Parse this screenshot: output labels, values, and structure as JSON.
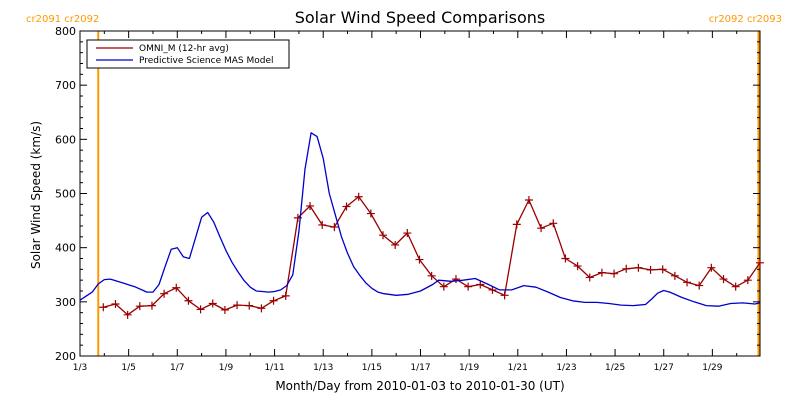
{
  "chart_data": {
    "type": "line",
    "title": "Solar Wind Speed Comparisons",
    "xlabel": "Month/Day from 2010-01-03 to 2010-01-30 (UT)",
    "ylabel": "Solar Wind Speed (km/s)",
    "xlim": [
      "2010-01-03",
      "2010-01-30T23:00"
    ],
    "ylim": [
      200,
      800
    ],
    "x_ticks": [
      "1/3",
      "1/5",
      "1/7",
      "1/9",
      "1/11",
      "1/13",
      "1/15",
      "1/17",
      "1/19",
      "1/21",
      "1/23",
      "1/25",
      "1/27",
      "1/29"
    ],
    "y_ticks": [
      200,
      300,
      400,
      500,
      600,
      700,
      800
    ],
    "grid": false,
    "legend_placement": "top-left",
    "rotation_labels": {
      "left": "cr2091 cr2092",
      "right": "cr2092 cr2093",
      "color": "#ff9900"
    },
    "rotation_markers": [
      "2010-01-03T18:00",
      "2010-01-30T21:30"
    ],
    "series": [
      {
        "name": "OMNI_M (12-hr avg)",
        "color": "#990000",
        "marker": "+",
        "points": [
          [
            "2010-01-03T23:00",
            290
          ],
          [
            "2010-01-04T11:00",
            296
          ],
          [
            "2010-01-04T23:00",
            276
          ],
          [
            "2010-01-05T11:00",
            292
          ],
          [
            "2010-01-05T23:00",
            293
          ],
          [
            "2010-01-06T11:00",
            315
          ],
          [
            "2010-01-06T23:00",
            326
          ],
          [
            "2010-01-07T11:00",
            302
          ],
          [
            "2010-01-07T23:00",
            286
          ],
          [
            "2010-01-08T11:00",
            297
          ],
          [
            "2010-01-08T23:00",
            285
          ],
          [
            "2010-01-09T11:00",
            294
          ],
          [
            "2010-01-09T23:00",
            293
          ],
          [
            "2010-01-10T11:00",
            288
          ],
          [
            "2010-01-10T23:00",
            302
          ],
          [
            "2010-01-11T11:00",
            311
          ],
          [
            "2010-01-11T23:00",
            455
          ],
          [
            "2010-01-12T11:00",
            477
          ],
          [
            "2010-01-12T23:00",
            442
          ],
          [
            "2010-01-13T11:00",
            438
          ],
          [
            "2010-01-13T23:00",
            476
          ],
          [
            "2010-01-14T11:00",
            494
          ],
          [
            "2010-01-14T23:00",
            463
          ],
          [
            "2010-01-15T11:00",
            423
          ],
          [
            "2010-01-15T23:00",
            405
          ],
          [
            "2010-01-16T11:00",
            427
          ],
          [
            "2010-01-16T23:00",
            378
          ],
          [
            "2010-01-17T11:00",
            348
          ],
          [
            "2010-01-17T23:00",
            328
          ],
          [
            "2010-01-18T11:00",
            342
          ],
          [
            "2010-01-18T23:00",
            328
          ],
          [
            "2010-01-19T11:00",
            332
          ],
          [
            "2010-01-19T23:00",
            322
          ],
          [
            "2010-01-20T11:00",
            312
          ],
          [
            "2010-01-20T23:00",
            443
          ],
          [
            "2010-01-21T11:00",
            488
          ],
          [
            "2010-01-21T23:00",
            436
          ],
          [
            "2010-01-22T11:00",
            445
          ],
          [
            "2010-01-22T23:00",
            380
          ],
          [
            "2010-01-23T11:00",
            366
          ],
          [
            "2010-01-23T23:00",
            345
          ],
          [
            "2010-01-24T11:00",
            354
          ],
          [
            "2010-01-24T23:00",
            352
          ],
          [
            "2010-01-25T11:00",
            361
          ],
          [
            "2010-01-25T23:00",
            363
          ],
          [
            "2010-01-26T11:00",
            359
          ],
          [
            "2010-01-26T23:00",
            360
          ],
          [
            "2010-01-27T11:00",
            348
          ],
          [
            "2010-01-27T23:00",
            336
          ],
          [
            "2010-01-28T11:00",
            330
          ],
          [
            "2010-01-28T23:00",
            363
          ],
          [
            "2010-01-29T11:00",
            342
          ],
          [
            "2010-01-29T23:00",
            328
          ],
          [
            "2010-01-30T11:00",
            340
          ],
          [
            "2010-01-30T23:00",
            372
          ]
        ]
      },
      {
        "name": "Predictive Science MAS Model",
        "color": "#0000cc",
        "marker": "none",
        "points": [
          [
            "2010-01-03T00:00",
            303
          ],
          [
            "2010-01-03T12:00",
            318
          ],
          [
            "2010-01-03T18:00",
            333
          ],
          [
            "2010-01-04T00:00",
            341
          ],
          [
            "2010-01-04T06:00",
            342
          ],
          [
            "2010-01-04T18:00",
            335
          ],
          [
            "2010-01-05T06:00",
            328
          ],
          [
            "2010-01-05T18:00",
            318
          ],
          [
            "2010-01-06T00:00",
            318
          ],
          [
            "2010-01-06T06:00",
            332
          ],
          [
            "2010-01-06T12:00",
            365
          ],
          [
            "2010-01-06T18:00",
            397
          ],
          [
            "2010-01-07T00:00",
            400
          ],
          [
            "2010-01-07T06:00",
            383
          ],
          [
            "2010-01-07T12:00",
            380
          ],
          [
            "2010-01-07T18:00",
            418
          ],
          [
            "2010-01-08T00:00",
            456
          ],
          [
            "2010-01-08T06:00",
            465
          ],
          [
            "2010-01-08T12:00",
            447
          ],
          [
            "2010-01-08T18:00",
            420
          ],
          [
            "2010-01-09T00:00",
            395
          ],
          [
            "2010-01-09T06:00",
            373
          ],
          [
            "2010-01-09T12:00",
            355
          ],
          [
            "2010-01-09T18:00",
            339
          ],
          [
            "2010-01-10T00:00",
            327
          ],
          [
            "2010-01-10T06:00",
            320
          ],
          [
            "2010-01-10T12:00",
            319
          ],
          [
            "2010-01-10T18:00",
            318
          ],
          [
            "2010-01-11T00:00",
            319
          ],
          [
            "2010-01-11T06:00",
            322
          ],
          [
            "2010-01-11T12:00",
            330
          ],
          [
            "2010-01-11T18:00",
            350
          ],
          [
            "2010-01-12T00:00",
            430
          ],
          [
            "2010-01-12T06:00",
            545
          ],
          [
            "2010-01-12T12:00",
            612
          ],
          [
            "2010-01-12T18:00",
            605
          ],
          [
            "2010-01-13T00:00",
            565
          ],
          [
            "2010-01-13T06:00",
            500
          ],
          [
            "2010-01-13T12:00",
            460
          ],
          [
            "2010-01-13T18:00",
            420
          ],
          [
            "2010-01-14T00:00",
            390
          ],
          [
            "2010-01-14T06:00",
            365
          ],
          [
            "2010-01-14T12:00",
            349
          ],
          [
            "2010-01-14T18:00",
            335
          ],
          [
            "2010-01-15T00:00",
            325
          ],
          [
            "2010-01-15T06:00",
            318
          ],
          [
            "2010-01-15T12:00",
            315
          ],
          [
            "2010-01-16T00:00",
            312
          ],
          [
            "2010-01-16T12:00",
            314
          ],
          [
            "2010-01-17T00:00",
            320
          ],
          [
            "2010-01-17T12:00",
            332
          ],
          [
            "2010-01-17T18:00",
            340
          ],
          [
            "2010-01-18T06:00",
            338
          ],
          [
            "2010-01-18T18:00",
            340
          ],
          [
            "2010-01-19T06:00",
            343
          ],
          [
            "2010-01-19T18:00",
            333
          ],
          [
            "2010-01-20T06:00",
            322
          ],
          [
            "2010-01-20T18:00",
            322
          ],
          [
            "2010-01-21T06:00",
            330
          ],
          [
            "2010-01-21T18:00",
            327
          ],
          [
            "2010-01-22T06:00",
            318
          ],
          [
            "2010-01-22T18:00",
            308
          ],
          [
            "2010-01-23T06:00",
            302
          ],
          [
            "2010-01-23T18:00",
            299
          ],
          [
            "2010-01-24T06:00",
            299
          ],
          [
            "2010-01-24T18:00",
            297
          ],
          [
            "2010-01-25T06:00",
            294
          ],
          [
            "2010-01-25T18:00",
            293
          ],
          [
            "2010-01-26T06:00",
            295
          ],
          [
            "2010-01-26T12:00",
            305
          ],
          [
            "2010-01-26T18:00",
            316
          ],
          [
            "2010-01-27T00:00",
            321
          ],
          [
            "2010-01-27T06:00",
            318
          ],
          [
            "2010-01-27T18:00",
            308
          ],
          [
            "2010-01-28T06:00",
            300
          ],
          [
            "2010-01-28T18:00",
            293
          ],
          [
            "2010-01-29T06:00",
            292
          ],
          [
            "2010-01-29T18:00",
            297
          ],
          [
            "2010-01-30T06:00",
            298
          ],
          [
            "2010-01-30T18:00",
            296
          ],
          [
            "2010-01-30T23:00",
            298
          ]
        ]
      }
    ]
  }
}
